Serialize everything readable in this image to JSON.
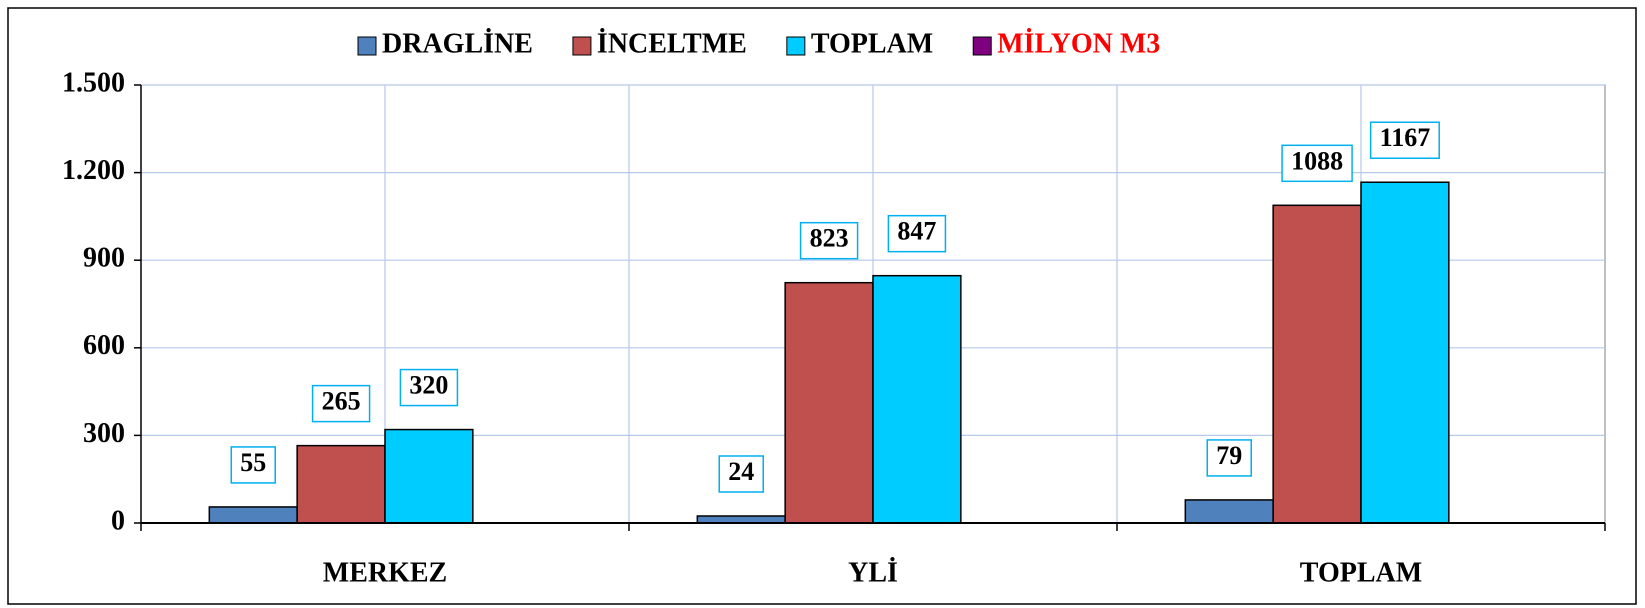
{
  "chart_data": {
    "type": "bar",
    "categories": [
      "MERKEZ",
      "YLİ",
      "TOPLAM"
    ],
    "series": [
      {
        "name": "DRAGLİNE",
        "color": "#4f81bd",
        "values": [
          55,
          24,
          79
        ]
      },
      {
        "name": "İNCELTME",
        "color": "#c0504d",
        "values": [
          265,
          823,
          1088
        ]
      },
      {
        "name": "TOPLAM",
        "color": "#00ccff",
        "values": [
          320,
          847,
          1167
        ]
      },
      {
        "name": "MİLYON M3",
        "color": "#7f007f",
        "label_color": "#ff0000",
        "values": [
          null,
          null,
          null
        ]
      }
    ],
    "ylim": [
      0,
      1500
    ],
    "yticks": [
      0,
      300,
      600,
      900,
      {
        "value": 1200,
        "label": "1.200"
      },
      {
        "value": 1500,
        "label": "1.500"
      }
    ],
    "grid": true,
    "legend": "top"
  }
}
